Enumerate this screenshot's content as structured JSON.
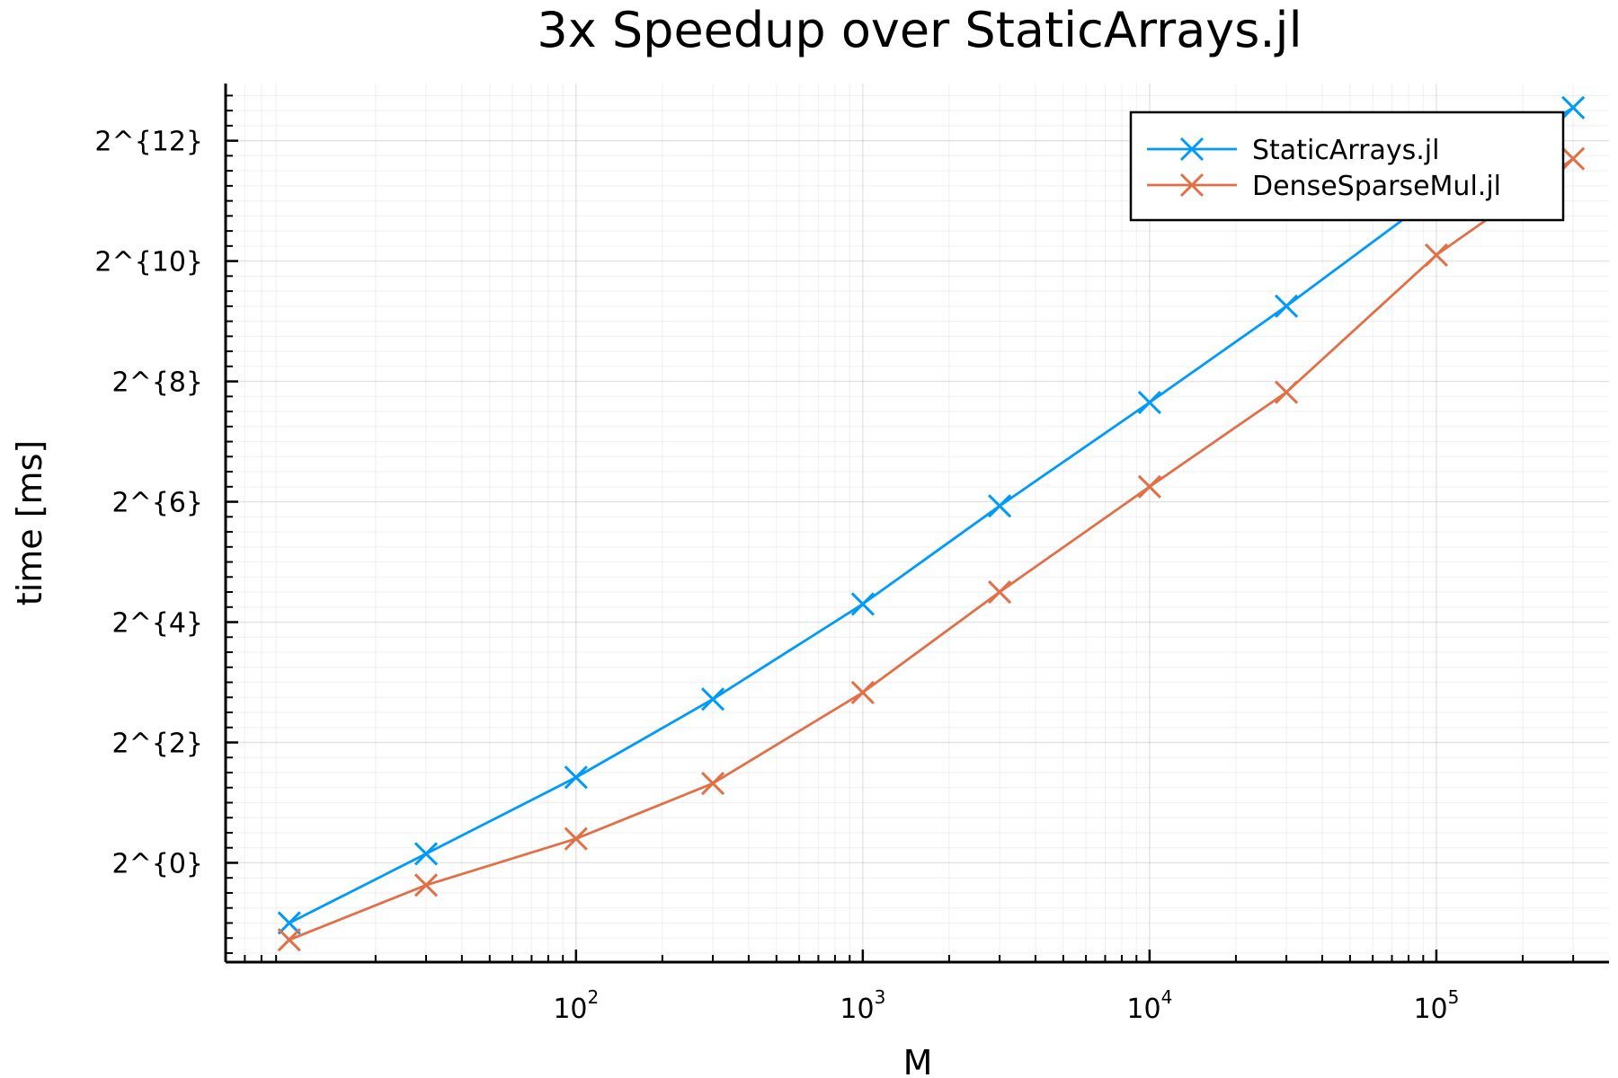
{
  "chart_data": {
    "type": "line",
    "title": "3x Speedup over StaticArrays.jl",
    "xlabel": "M",
    "ylabel": "time [ms]",
    "xscale": "log10",
    "yscale": "log2",
    "xlim": [
      6,
      400000
    ],
    "ylim": [
      -1.65,
      12.95
    ],
    "x_ticks": [
      {
        "value": 100,
        "base": "10",
        "exp": "2"
      },
      {
        "value": 1000,
        "base": "10",
        "exp": "3"
      },
      {
        "value": 10000,
        "base": "10",
        "exp": "4"
      },
      {
        "value": 100000,
        "base": "10",
        "exp": "5"
      }
    ],
    "y_ticks": [
      {
        "exp": 0,
        "label": "2^{0}"
      },
      {
        "exp": 2,
        "label": "2^{2}"
      },
      {
        "exp": 4,
        "label": "2^{4}"
      },
      {
        "exp": 6,
        "label": "2^{6}"
      },
      {
        "exp": 8,
        "label": "2^{8}"
      },
      {
        "exp": 10,
        "label": "2^{10}"
      },
      {
        "exp": 12,
        "label": "2^{12}"
      }
    ],
    "grid": true,
    "legend_position": "top-right",
    "x": [
      10,
      30,
      100,
      300,
      1000,
      3000,
      10000,
      30000,
      100000,
      300000
    ],
    "series": [
      {
        "name": "StaticArrays.jl",
        "color": "#009AF9",
        "marker": "x",
        "log2_values": [
          -1.0,
          0.15,
          1.42,
          2.72,
          4.3,
          5.93,
          7.65,
          9.25,
          11.1,
          12.55
        ]
      },
      {
        "name": "DenseSparseMul.jl",
        "color": "#E26F46",
        "marker": "x",
        "log2_values": [
          -1.28,
          -0.37,
          0.4,
          1.32,
          2.83,
          4.5,
          6.25,
          7.82,
          10.1,
          11.7
        ]
      }
    ]
  }
}
